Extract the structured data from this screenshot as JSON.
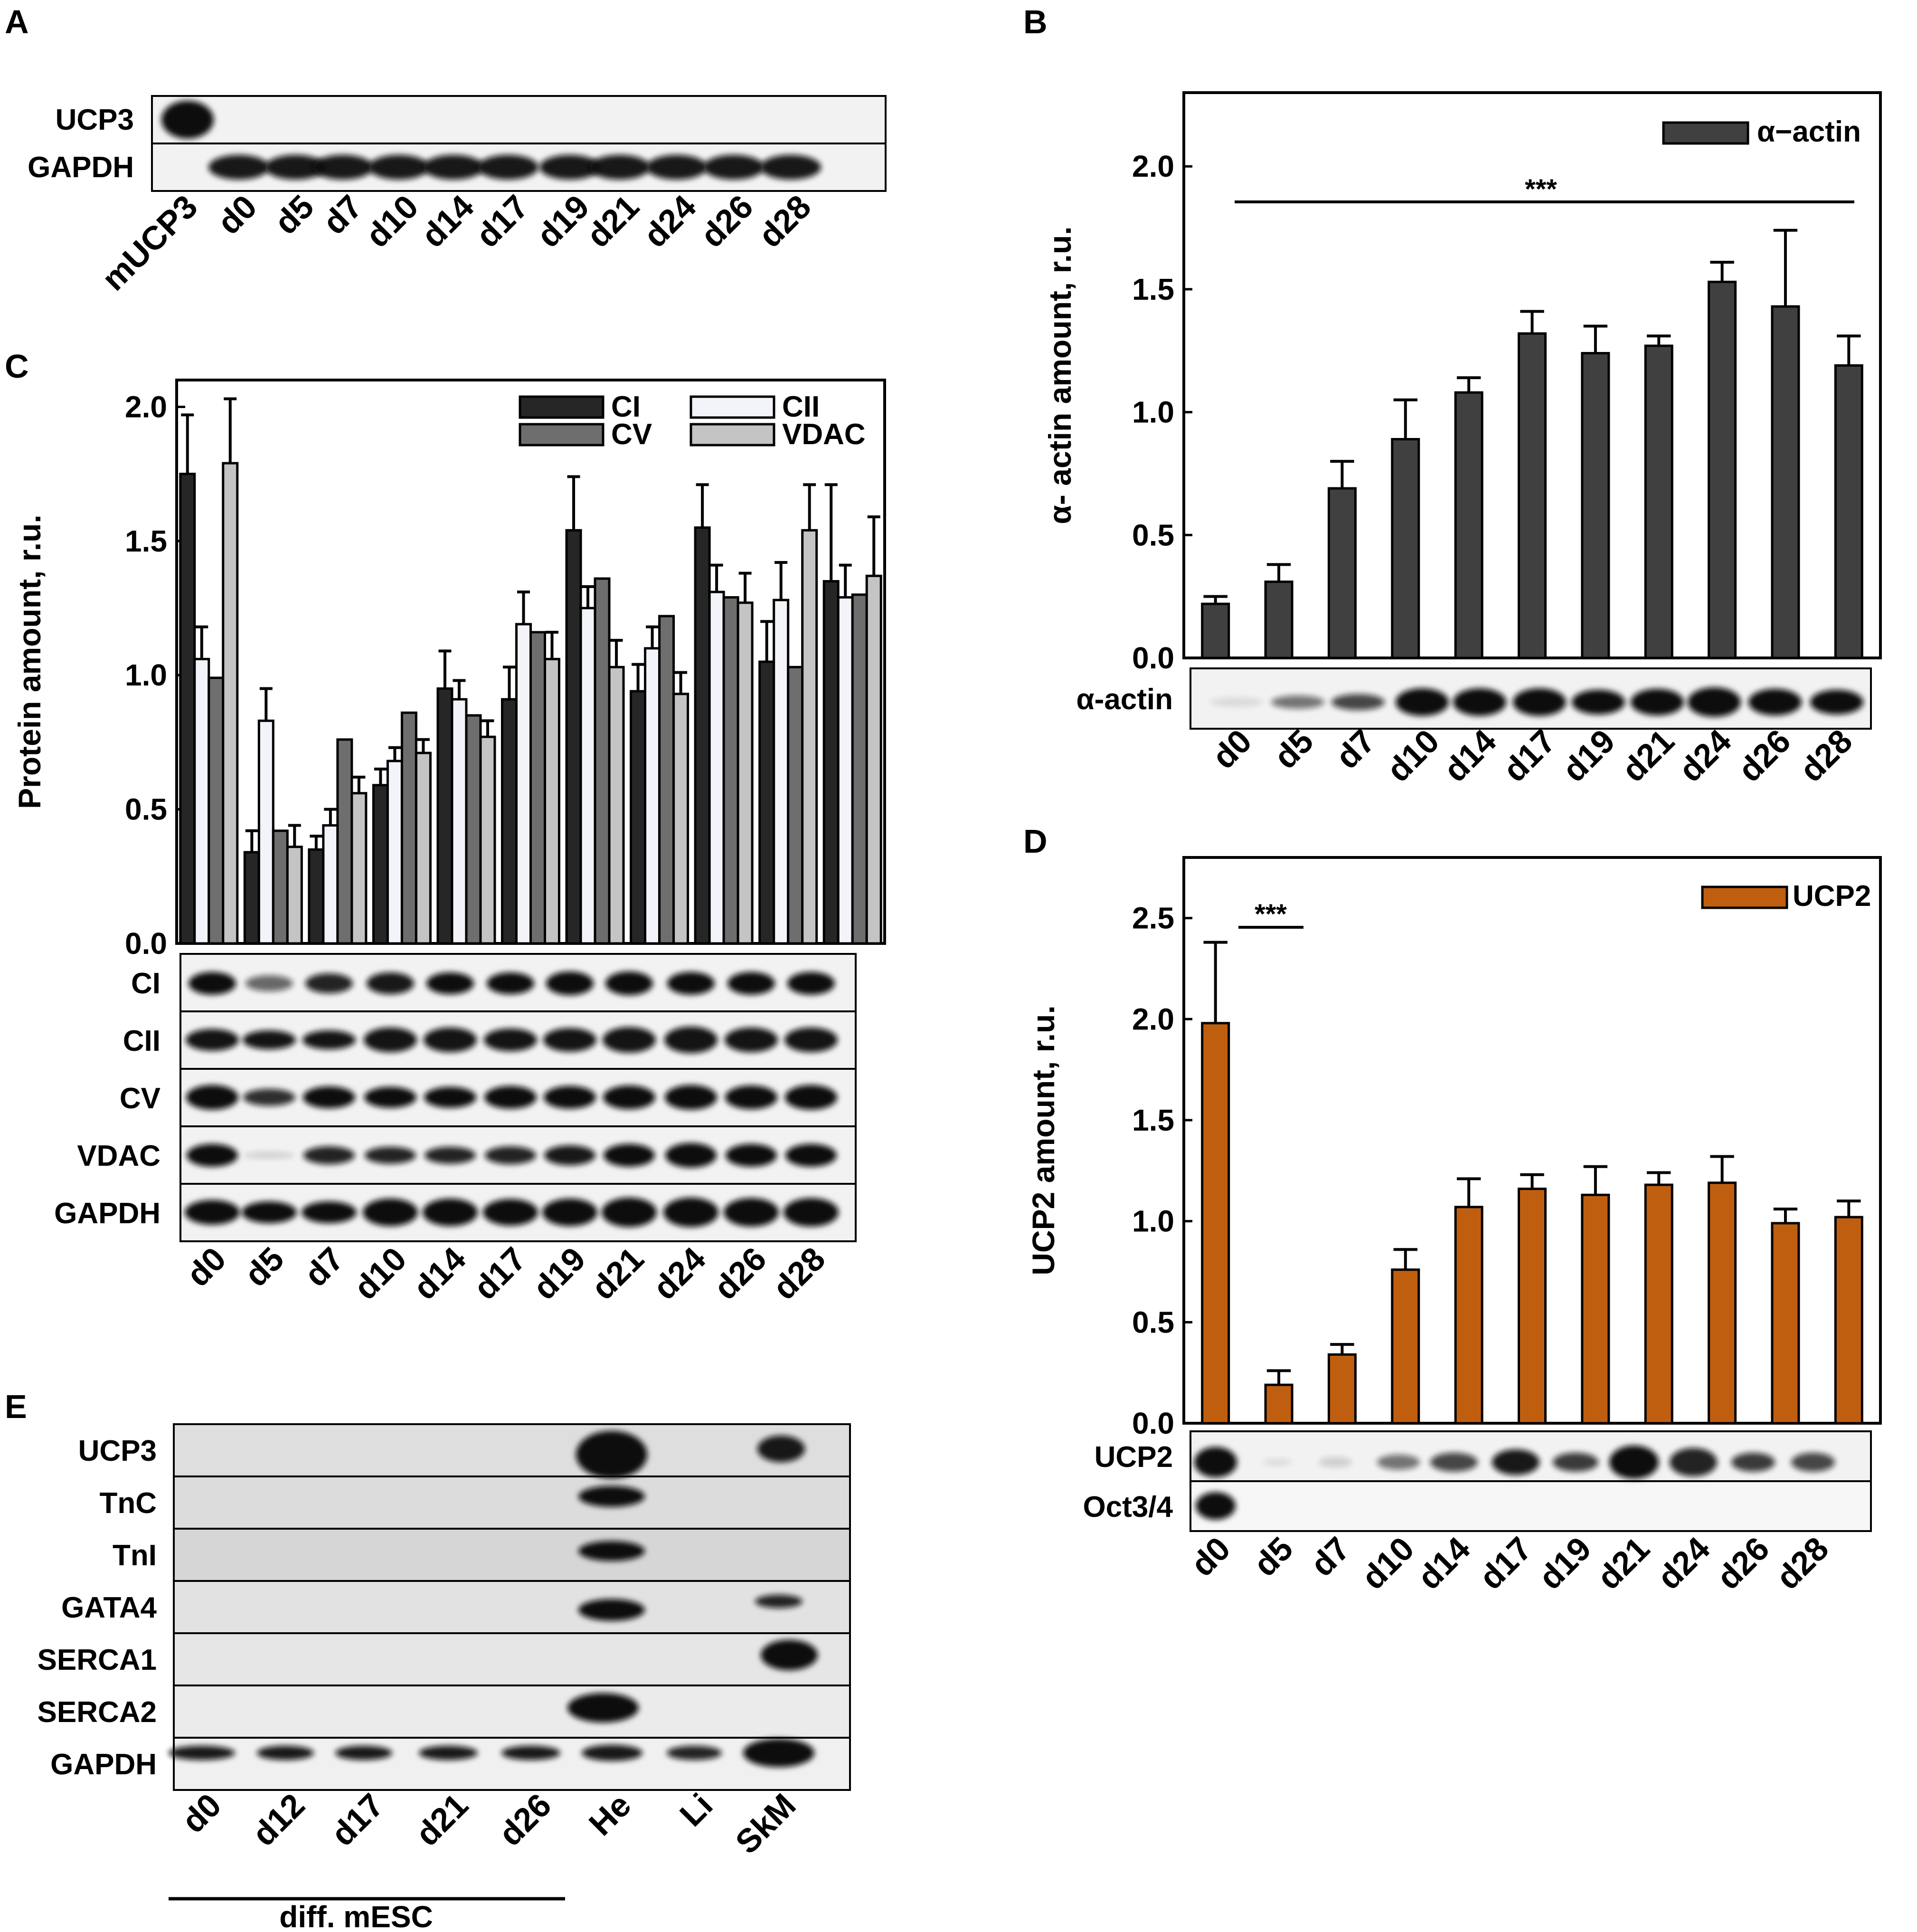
{
  "figure": {
    "panel_letters": [
      "A",
      "B",
      "C",
      "D",
      "E"
    ]
  },
  "colors": {
    "ci": "#262626",
    "cii": "#f2f4fa",
    "cv": "#6e6e6e",
    "vdac": "#c4c4c4",
    "actin": "#404040",
    "ucp2": "#c05e0f",
    "membrane": "#f2f2f2",
    "membrane_e": "#dcdcdc",
    "band": "#0d0d0d"
  },
  "panel_a": {
    "letter": "A",
    "blots": [
      "UCP3",
      "GAPDH"
    ],
    "lanes": [
      "mUCP3",
      "d0",
      "d5",
      "d7",
      "d10",
      "d14",
      "d17",
      "d19",
      "d21",
      "d24",
      "d26",
      "d28"
    ]
  },
  "panel_b": {
    "letter": "B",
    "blots": [
      "α-actin"
    ],
    "lanes": [
      "d0",
      "d5",
      "d7",
      "d10",
      "d14",
      "d17",
      "d19",
      "d21",
      "d24",
      "d26",
      "d28"
    ],
    "significance": "***"
  },
  "panel_c": {
    "letter": "C",
    "blots": [
      "CI",
      "CII",
      "CV",
      "VDAC",
      "GAPDH"
    ],
    "lanes": [
      "d0",
      "d5",
      "d7",
      "d10",
      "d14",
      "d17",
      "d19",
      "d21",
      "d24",
      "d26",
      "d28"
    ]
  },
  "panel_d": {
    "letter": "D",
    "blots": [
      "UCP2",
      "Oct3/4"
    ],
    "lanes": [
      "d0",
      "d5",
      "d7",
      "d10",
      "d14",
      "d17",
      "d19",
      "d21",
      "d24",
      "d26",
      "d28"
    ],
    "significance": "***"
  },
  "panel_e": {
    "letter": "E",
    "blots": [
      "UCP3",
      "TnC",
      "TnI",
      "GATA4",
      "SERCA1",
      "SERCA2",
      "GAPDH"
    ],
    "lanes": [
      "d0",
      "d12",
      "d17",
      "d21",
      "d26",
      "He",
      "Li",
      "SkM"
    ],
    "group_label": "diff. mESC"
  },
  "chart_data": [
    {
      "id": "C",
      "type": "bar",
      "ylabel": "Protein amount, r.u.",
      "ylim": [
        0,
        2.1
      ],
      "yticks": [
        "0.0",
        "0.5",
        "1.0",
        "1.5",
        "2.0"
      ],
      "categories": [
        "d0",
        "d5",
        "d7",
        "d10",
        "d14",
        "d17",
        "d19",
        "d21",
        "d24",
        "d26",
        "d28"
      ],
      "series": [
        {
          "name": "CI",
          "color": "#262626",
          "values": [
            1.75,
            0.34,
            0.35,
            0.59,
            0.95,
            0.91,
            1.54,
            0.94,
            1.55,
            1.05,
            1.35
          ],
          "errors": [
            0.22,
            0.08,
            0.05,
            0.06,
            0.14,
            0.12,
            0.2,
            0.1,
            0.16,
            0.15,
            0.36
          ]
        },
        {
          "name": "CII",
          "color": "#f2f4fa",
          "values": [
            1.06,
            0.83,
            0.44,
            0.68,
            0.91,
            1.19,
            1.25,
            1.1,
            1.31,
            1.28,
            1.29
          ],
          "errors": [
            0.12,
            0.12,
            0.06,
            0.05,
            0.07,
            0.12,
            0.08,
            0.08,
            0.1,
            0.14,
            0.12
          ]
        },
        {
          "name": "CV",
          "color": "#6e6e6e",
          "values": [
            0.99,
            0.42,
            0.76,
            0.86,
            0.85,
            1.16,
            1.36,
            1.22,
            1.29,
            1.03,
            1.3
          ]
        },
        {
          "name": "VDAC",
          "color": "#c4c4c4",
          "values": [
            1.79,
            0.36,
            0.56,
            0.71,
            0.77,
            1.06,
            1.03,
            0.93,
            1.27,
            1.54,
            1.37
          ],
          "errors": [
            0.24,
            0.08,
            0.06,
            0.05,
            0.06,
            0.1,
            0.1,
            0.08,
            0.11,
            0.17,
            0.22
          ]
        }
      ],
      "legend": [
        "CI",
        "CII",
        "CV",
        "VDAC"
      ],
      "legend_position": "top-right"
    },
    {
      "id": "B",
      "type": "bar",
      "ylabel": "α- actin amount, r.u.",
      "ylim": [
        0,
        2.3
      ],
      "yticks": [
        "0.0",
        "0.5",
        "1.0",
        "1.5",
        "2.0"
      ],
      "categories": [
        "d0",
        "d5",
        "d7",
        "d10",
        "d14",
        "d17",
        "d19",
        "d21",
        "d24",
        "d26",
        "d28"
      ],
      "series": [
        {
          "name": "α−actin",
          "color": "#404040",
          "values": [
            0.22,
            0.31,
            0.69,
            0.89,
            1.08,
            1.32,
            1.24,
            1.27,
            1.53,
            1.43,
            1.19
          ],
          "errors": [
            0.03,
            0.07,
            0.11,
            0.16,
            0.06,
            0.09,
            0.11,
            0.04,
            0.08,
            0.31,
            0.12
          ]
        }
      ],
      "legend": [
        "α−actin"
      ],
      "legend_position": "top-right",
      "annotation": "***"
    },
    {
      "id": "D",
      "type": "bar",
      "ylabel": "UCP2 amount, r.u.",
      "ylim": [
        0,
        2.8
      ],
      "yticks": [
        "0.0",
        "0.5",
        "1.0",
        "1.5",
        "2.0",
        "2.5"
      ],
      "categories": [
        "d0",
        "d5",
        "d7",
        "d10",
        "d14",
        "d17",
        "d19",
        "d21",
        "d24",
        "d26",
        "d28"
      ],
      "series": [
        {
          "name": "UCP2",
          "color": "#c05e0f",
          "values": [
            1.98,
            0.19,
            0.34,
            0.76,
            1.07,
            1.16,
            1.13,
            1.18,
            1.19,
            0.99,
            1.02
          ],
          "errors": [
            0.4,
            0.07,
            0.05,
            0.1,
            0.14,
            0.07,
            0.14,
            0.06,
            0.13,
            0.07,
            0.08
          ]
        }
      ],
      "legend": [
        "UCP2"
      ],
      "legend_position": "top-right",
      "annotation": "***"
    }
  ]
}
